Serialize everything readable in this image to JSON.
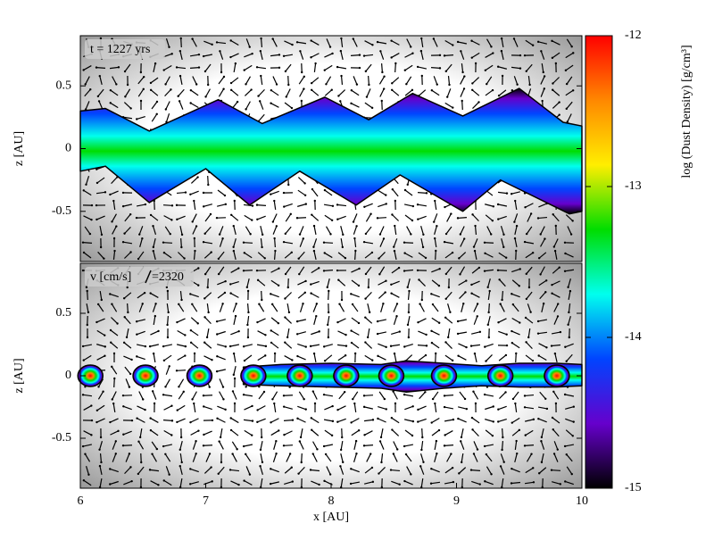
{
  "chart_data": [
    {
      "type": "density-map",
      "annotation": "t = 1227 yrs",
      "ylabel": "z [AU]",
      "xlim": [
        6,
        10
      ],
      "ylim": [
        -0.9,
        0.9
      ],
      "yticks": [
        -0.5,
        0,
        0.5
      ],
      "layer_top": {
        "x": [
          6,
          6.2,
          6.55,
          7.1,
          7.45,
          7.95,
          8.3,
          8.65,
          9.05,
          9.5,
          9.85,
          10
        ],
        "values": [
          0.3,
          0.32,
          0.14,
          0.39,
          0.2,
          0.41,
          0.23,
          0.44,
          0.26,
          0.48,
          0.21,
          0.18
        ]
      },
      "layer_bottom": {
        "x": [
          6,
          6.2,
          6.55,
          7,
          7.35,
          7.75,
          8.2,
          8.55,
          9.05,
          9.35,
          9.9,
          10
        ],
        "values": [
          -0.18,
          -0.14,
          -0.43,
          -0.16,
          -0.45,
          -0.18,
          -0.45,
          -0.21,
          -0.5,
          -0.25,
          -0.52,
          -0.5
        ]
      }
    },
    {
      "type": "density-map",
      "annotation": "v [cm/s]",
      "arrow_label": "=2320",
      "ylabel": "z [AU]",
      "xlabel": "x [AU]",
      "xlim": [
        6,
        10
      ],
      "ylim": [
        -0.9,
        0.9
      ],
      "yticks": [
        -0.5,
        0,
        0.5
      ],
      "xticks": [
        6,
        7,
        8,
        9,
        10
      ],
      "layer_top": {
        "x": [
          7.3,
          7.6,
          8.0,
          8.4,
          8.6,
          8.9,
          9.2,
          9.5,
          9.8,
          10
        ],
        "values": [
          0.07,
          0.09,
          0.1,
          0.09,
          0.12,
          0.1,
          0.08,
          0.1,
          0.1,
          0.09
        ]
      },
      "layer_bottom": {
        "x": [
          7.3,
          7.6,
          8.0,
          8.4,
          8.6,
          8.9,
          9.2,
          9.5,
          9.8,
          10
        ],
        "values": [
          -0.07,
          -0.08,
          -0.09,
          -0.1,
          -0.13,
          -0.1,
          -0.08,
          -0.09,
          -0.09,
          -0.08
        ]
      },
      "clumps": {
        "x": [
          6.08,
          6.52,
          6.95,
          7.38,
          7.75,
          8.12,
          8.48,
          8.9,
          9.35,
          9.8
        ],
        "z": [
          0,
          0,
          0,
          0,
          0,
          0,
          0,
          0,
          0,
          0
        ]
      }
    },
    {
      "type": "colorbar",
      "label": "log (Dust Density) [g/cm³]",
      "ylim": [
        -15,
        -12
      ],
      "yticks": [
        -15,
        -14,
        -13,
        -12
      ],
      "colormap": [
        "#ff0000",
        "#ff8800",
        "#ffee00",
        "#00dd00",
        "#00ffee",
        "#0044ff",
        "#6600cc",
        "#000000"
      ]
    }
  ]
}
